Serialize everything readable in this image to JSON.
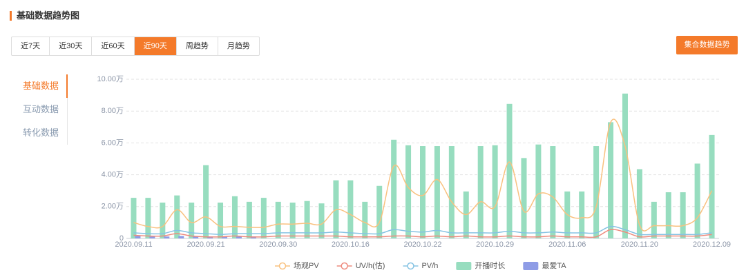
{
  "header": {
    "title": "基础数据趋势图"
  },
  "tabs": [
    "近7天",
    "近30天",
    "近60天",
    "近90天",
    "周趋势",
    "月趋势"
  ],
  "action_button": "集合数据趋势",
  "side_nav": [
    "基础数据",
    "互动数据",
    "转化数据"
  ],
  "chart_data": {
    "type": "combo",
    "categories": [
      "2020.09.11",
      null,
      null,
      null,
      null,
      "2020.09.21",
      null,
      null,
      null,
      null,
      "2020.09.30",
      null,
      null,
      null,
      null,
      "2020.10.16",
      null,
      null,
      null,
      null,
      "2020.10.22",
      null,
      null,
      null,
      null,
      "2020.10.29",
      null,
      null,
      null,
      null,
      "2020.11.06",
      null,
      null,
      null,
      null,
      "2020.11.20",
      null,
      null,
      null,
      null,
      "2020.12.09"
    ],
    "ylim": [
      0,
      100000
    ],
    "yticks": [
      0,
      {
        "value": 20000,
        "label": "2.00万"
      },
      {
        "value": 40000,
        "label": "4.00万"
      },
      {
        "value": 60000,
        "label": "6.00万"
      },
      {
        "value": 80000,
        "label": "8.00万"
      },
      {
        "value": 100000,
        "label": "10.00万"
      }
    ],
    "grid": true,
    "series": [
      {
        "name": "场观PV",
        "type": "line",
        "color": "#f9c17f",
        "values": [
          10000,
          7500,
          7500,
          18000,
          10000,
          13500,
          7500,
          7500,
          7000,
          7000,
          9000,
          9000,
          9500,
          9000,
          18000,
          15000,
          10000,
          10000,
          45500,
          32000,
          27000,
          37000,
          23000,
          15000,
          23000,
          20000,
          48000,
          17000,
          28000,
          26000,
          15000,
          13000,
          20000,
          73000,
          58000,
          8500,
          8000,
          8000,
          8000,
          13000,
          30000
        ]
      },
      {
        "name": "UV/h(估)",
        "type": "line",
        "color": "#ee8b7e",
        "values": [
          2000,
          1500,
          1500,
          3000,
          1500,
          1000,
          1000,
          1500,
          1000,
          1000,
          1500,
          1500,
          1500,
          1500,
          1500,
          1000,
          1000,
          1000,
          1500,
          1500,
          1000,
          1500,
          1000,
          1500,
          1000,
          1000,
          1500,
          1000,
          1000,
          1500,
          1000,
          1000,
          1000,
          5500,
          4000,
          1000,
          1500,
          1500,
          1500,
          1500,
          2500
        ]
      },
      {
        "name": "PV/h",
        "type": "line",
        "color": "#86c3e3",
        "values": [
          3500,
          3000,
          3000,
          5000,
          3500,
          3000,
          2500,
          3000,
          3000,
          3000,
          3500,
          3500,
          3500,
          3500,
          4000,
          3500,
          3000,
          3000,
          5500,
          4500,
          4000,
          5000,
          3500,
          3500,
          3500,
          3500,
          4500,
          3500,
          3500,
          4000,
          3500,
          3500,
          3500,
          7500,
          5500,
          2500,
          2500,
          2500,
          2500,
          2500,
          3500
        ]
      },
      {
        "name": "开播时长",
        "type": "bar",
        "color": "#97ddbf",
        "values": [
          25500,
          25500,
          22500,
          27000,
          22500,
          46000,
          22500,
          26500,
          23000,
          25500,
          23000,
          22500,
          23500,
          22000,
          36500,
          36500,
          23000,
          33000,
          62000,
          58500,
          58000,
          58000,
          58000,
          29500,
          58000,
          58500,
          84500,
          50500,
          59000,
          58000,
          29500,
          29500,
          58000,
          73000,
          91000,
          43500,
          23000,
          29000,
          29000,
          47000,
          65000
        ]
      },
      {
        "name": "最爱TA",
        "type": "bar",
        "color": "#8e9ce6",
        "values": [
          1500,
          1200,
          1200,
          1500,
          1200,
          1200,
          1200,
          1200,
          1200,
          0,
          0,
          0,
          0,
          0,
          0,
          0,
          0,
          0,
          0,
          0,
          0,
          0,
          0,
          0,
          0,
          0,
          0,
          0,
          0,
          0,
          0,
          0,
          0,
          0,
          0,
          0,
          0,
          0,
          0,
          0,
          0
        ]
      }
    ]
  }
}
